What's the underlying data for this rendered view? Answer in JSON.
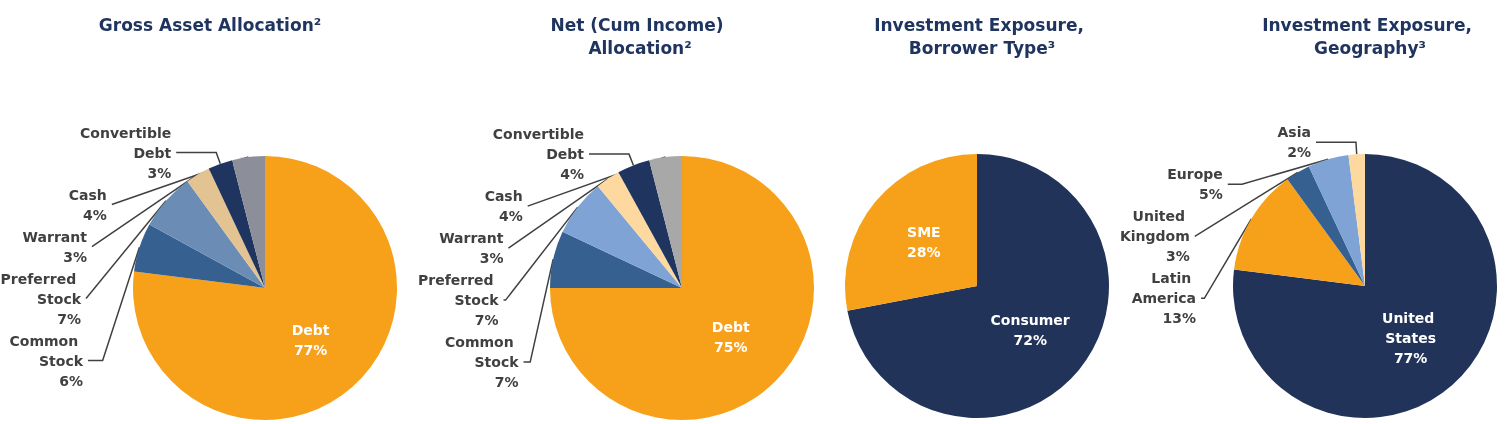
{
  "chart_data": [
    {
      "type": "pie",
      "title": "Gross Asset Allocation²",
      "categories": [
        "Debt",
        "Common Stock",
        "Preferred Stock",
        "Warrant",
        "Convertible Debt",
        "Cash"
      ],
      "values": [
        77,
        6,
        7,
        3,
        3,
        4
      ],
      "value_labels": [
        "77%",
        "6%",
        "7%",
        "3%",
        "3%",
        "4%"
      ],
      "colors": [
        "#f7a11a",
        "#35608f",
        "#6b8db5",
        "#e3c391",
        "#1f3560",
        "#8c8f99"
      ]
    },
    {
      "type": "pie",
      "title": "Net (Cum Income) Allocation²",
      "categories": [
        "Debt",
        "Common Stock",
        "Preferred Stock",
        "Warrant",
        "Convertible Debt",
        "Cash"
      ],
      "values": [
        75,
        7,
        7,
        3,
        4,
        4
      ],
      "value_labels": [
        "75%",
        "7%",
        "7%",
        "3%",
        "4%",
        "4%"
      ],
      "colors": [
        "#f7a11a",
        "#35608f",
        "#7ea3d4",
        "#fdd9a0",
        "#1f3560",
        "#a8a8a8"
      ]
    },
    {
      "type": "pie",
      "title": "Investment Exposure, Borrower Type³",
      "categories": [
        "Consumer",
        "SME"
      ],
      "values": [
        72,
        28
      ],
      "value_labels": [
        "72%",
        "28%"
      ],
      "colors": [
        "#22335a",
        "#f7a11a"
      ]
    },
    {
      "type": "pie",
      "title": "Investment Exposure, Geography³",
      "categories": [
        "United States",
        "Latin America",
        "United Kingdom",
        "Europe",
        "Asia"
      ],
      "values": [
        77,
        13,
        3,
        5,
        2
      ],
      "value_labels": [
        "77%",
        "13%",
        "3%",
        "5%",
        "2%"
      ],
      "colors": [
        "#22335a",
        "#f7a11a",
        "#35608f",
        "#7ea3d4",
        "#fdd9a0"
      ]
    }
  ]
}
